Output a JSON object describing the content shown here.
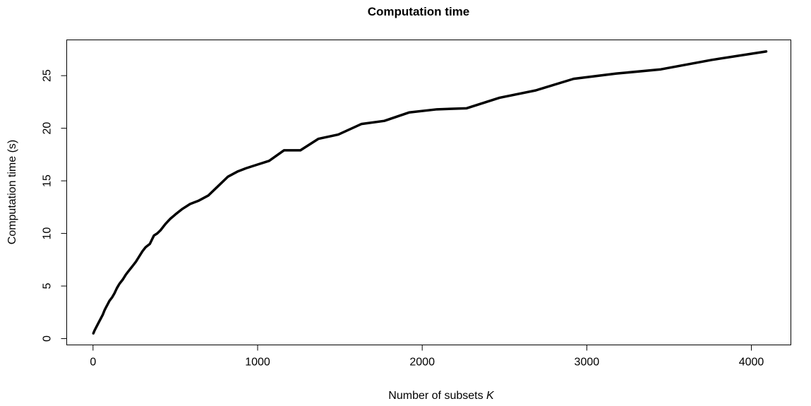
{
  "chart_data": {
    "type": "line",
    "title": "Computation time",
    "xlabel_text": "Number of subsets ",
    "xlabel_var": "K",
    "ylabel": "Computation time (s)",
    "xlim": [
      -160,
      4240
    ],
    "ylim": [
      -0.6,
      28.4
    ],
    "x_ticks": [
      0,
      1000,
      2000,
      3000,
      4000
    ],
    "x_tick_labels": [
      "0",
      "1000",
      "2000",
      "3000",
      "4000"
    ],
    "y_ticks": [
      0,
      5,
      10,
      15,
      20,
      25
    ],
    "y_tick_labels": [
      "0",
      "5",
      "10",
      "15",
      "20",
      "25"
    ],
    "grid": false,
    "line_color": "#000000",
    "series": [
      {
        "x": [
          2,
          10,
          20,
          30,
          40,
          50,
          60,
          70,
          80,
          90,
          100,
          115,
          130,
          145,
          160,
          180,
          200,
          220,
          240,
          260,
          280,
          300,
          320,
          345,
          370,
          390,
          410,
          440,
          470,
          500,
          540,
          590,
          640,
          700,
          760,
          820,
          880,
          930,
          990,
          1070,
          1160,
          1260,
          1370,
          1490,
          1630,
          1770,
          1920,
          2090,
          2270,
          2470,
          2690,
          2920,
          3180,
          3450,
          3760,
          4090
        ],
        "y": [
          0.5,
          0.8,
          1.1,
          1.4,
          1.7,
          2.0,
          2.3,
          2.7,
          3.0,
          3.3,
          3.6,
          3.9,
          4.3,
          4.8,
          5.2,
          5.6,
          6.1,
          6.5,
          6.9,
          7.3,
          7.8,
          8.3,
          8.7,
          9.0,
          9.8,
          10.0,
          10.3,
          10.9,
          11.4,
          11.8,
          12.3,
          12.8,
          13.1,
          13.6,
          14.5,
          15.4,
          15.9,
          16.2,
          16.5,
          16.9,
          17.9,
          17.9,
          19.0,
          19.4,
          20.4,
          20.7,
          21.5,
          21.8,
          21.9,
          22.9,
          23.6,
          24.7,
          25.2,
          25.6,
          26.5,
          27.3
        ]
      }
    ]
  }
}
